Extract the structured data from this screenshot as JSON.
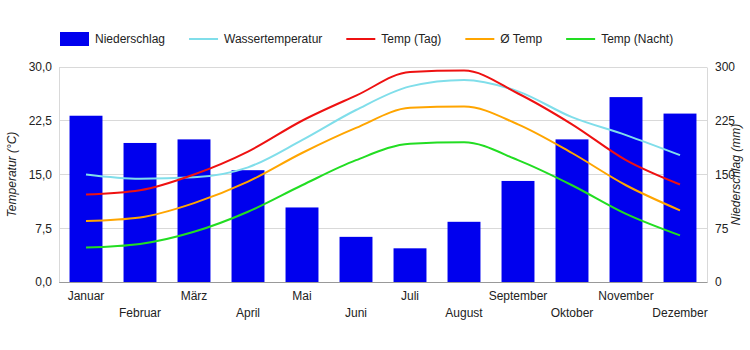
{
  "chart_data": {
    "type": "line",
    "categories": [
      "Januar",
      "Februar",
      "März",
      "April",
      "Mai",
      "Juni",
      "Juli",
      "August",
      "September",
      "Oktober",
      "November",
      "Dezember"
    ],
    "series": [
      {
        "name": "Niederschlag",
        "type": "bar",
        "axis": "y2",
        "color": "#0000ee",
        "values": [
          232,
          194,
          199,
          156,
          104,
          63,
          47,
          84,
          141,
          199,
          258,
          235
        ]
      },
      {
        "name": "Wassertemperatur",
        "color": "#80deea",
        "values": [
          15.0,
          14.4,
          14.6,
          16.0,
          19.8,
          24.0,
          27.3,
          28.2,
          26.6,
          23.0,
          20.5,
          17.7
        ]
      },
      {
        "name": "Temp (Tag)",
        "color": "#ee1111",
        "values": [
          12.2,
          12.8,
          15.0,
          18.2,
          22.5,
          26.0,
          29.3,
          29.5,
          26.3,
          22.0,
          17.0,
          13.6
        ]
      },
      {
        "name": "Ø Temp",
        "color": "#ffa500",
        "values": [
          8.5,
          9.0,
          11.0,
          14.0,
          18.0,
          21.5,
          24.3,
          24.5,
          22.0,
          18.0,
          13.5,
          10.0
        ]
      },
      {
        "name": "Temp (Nacht)",
        "color": "#22dd22",
        "values": [
          4.8,
          5.3,
          7.0,
          9.8,
          13.5,
          17.0,
          19.3,
          19.5,
          17.0,
          13.5,
          9.5,
          6.5
        ]
      }
    ],
    "y_label": "Temperatur (°C)",
    "y2_label": "Niederschlag (mm)",
    "ylim": [
      0,
      30
    ],
    "yticks": [
      {
        "value": 0,
        "label": "0,0"
      },
      {
        "value": 7.5,
        "label": "7,5"
      },
      {
        "value": 15,
        "label": "15,0"
      },
      {
        "value": 22.5,
        "label": "22,5"
      },
      {
        "value": 30,
        "label": "30,0"
      }
    ],
    "y2lim": [
      0,
      300
    ],
    "y2ticks": [
      0,
      75,
      150,
      225,
      300
    ],
    "grid": true,
    "legend": "top"
  }
}
